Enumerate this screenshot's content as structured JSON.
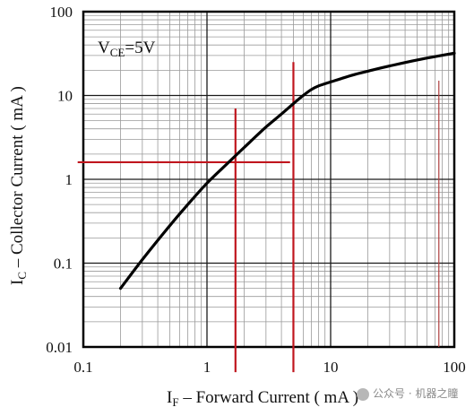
{
  "chart_data": {
    "type": "line",
    "xscale": "log",
    "yscale": "log",
    "xlim": [
      0.1,
      100
    ],
    "ylim": [
      0.01,
      100
    ],
    "x_ticks": [
      "0.1",
      "1",
      "10",
      "100"
    ],
    "y_ticks": [
      "100",
      "10",
      "1",
      "0.1",
      "0.01"
    ],
    "xlabel_main": "I",
    "xlabel_sub": "F",
    "xlabel_rest": " – Forward Current ( mA )",
    "ylabel_main": "I",
    "ylabel_sub": "C",
    "ylabel_rest": " – Collector Current ( mA )",
    "annotation_main": "V",
    "annotation_sub": "CE",
    "annotation_rest": "=5V",
    "grid": true,
    "series": [
      {
        "x": [
          0.2,
          0.3,
          0.5,
          0.7,
          1.0,
          1.5,
          2.0,
          3.0,
          4.0,
          5.0,
          6.0,
          7.0,
          8.0,
          10,
          15,
          20,
          30,
          50,
          100
        ],
        "y": [
          0.05,
          0.11,
          0.28,
          0.5,
          0.9,
          1.6,
          2.4,
          4.2,
          6.0,
          8.0,
          10.0,
          11.8,
          13.0,
          14.5,
          17.5,
          19.5,
          22.5,
          26.5,
          32.0
        ],
        "color": "#000000"
      }
    ],
    "marker_lines": [
      {
        "orientation": "vertical",
        "x": 1.7,
        "y_from": 0.005,
        "y_to": 7.0,
        "color": "#c0161e"
      },
      {
        "orientation": "vertical",
        "x": 5.0,
        "y_from": 0.005,
        "y_to": 25.0,
        "color": "#c0161e"
      },
      {
        "orientation": "horizontal",
        "y": 1.6,
        "x_from": 0.09,
        "x_to": 4.7,
        "color": "#c0161e"
      },
      {
        "orientation": "vertical",
        "x": 75,
        "y_from": 0.01,
        "y_to": 15.0,
        "color": "#b04040"
      }
    ]
  },
  "watermark": {
    "text": "公众号 · 机器之瞳"
  }
}
